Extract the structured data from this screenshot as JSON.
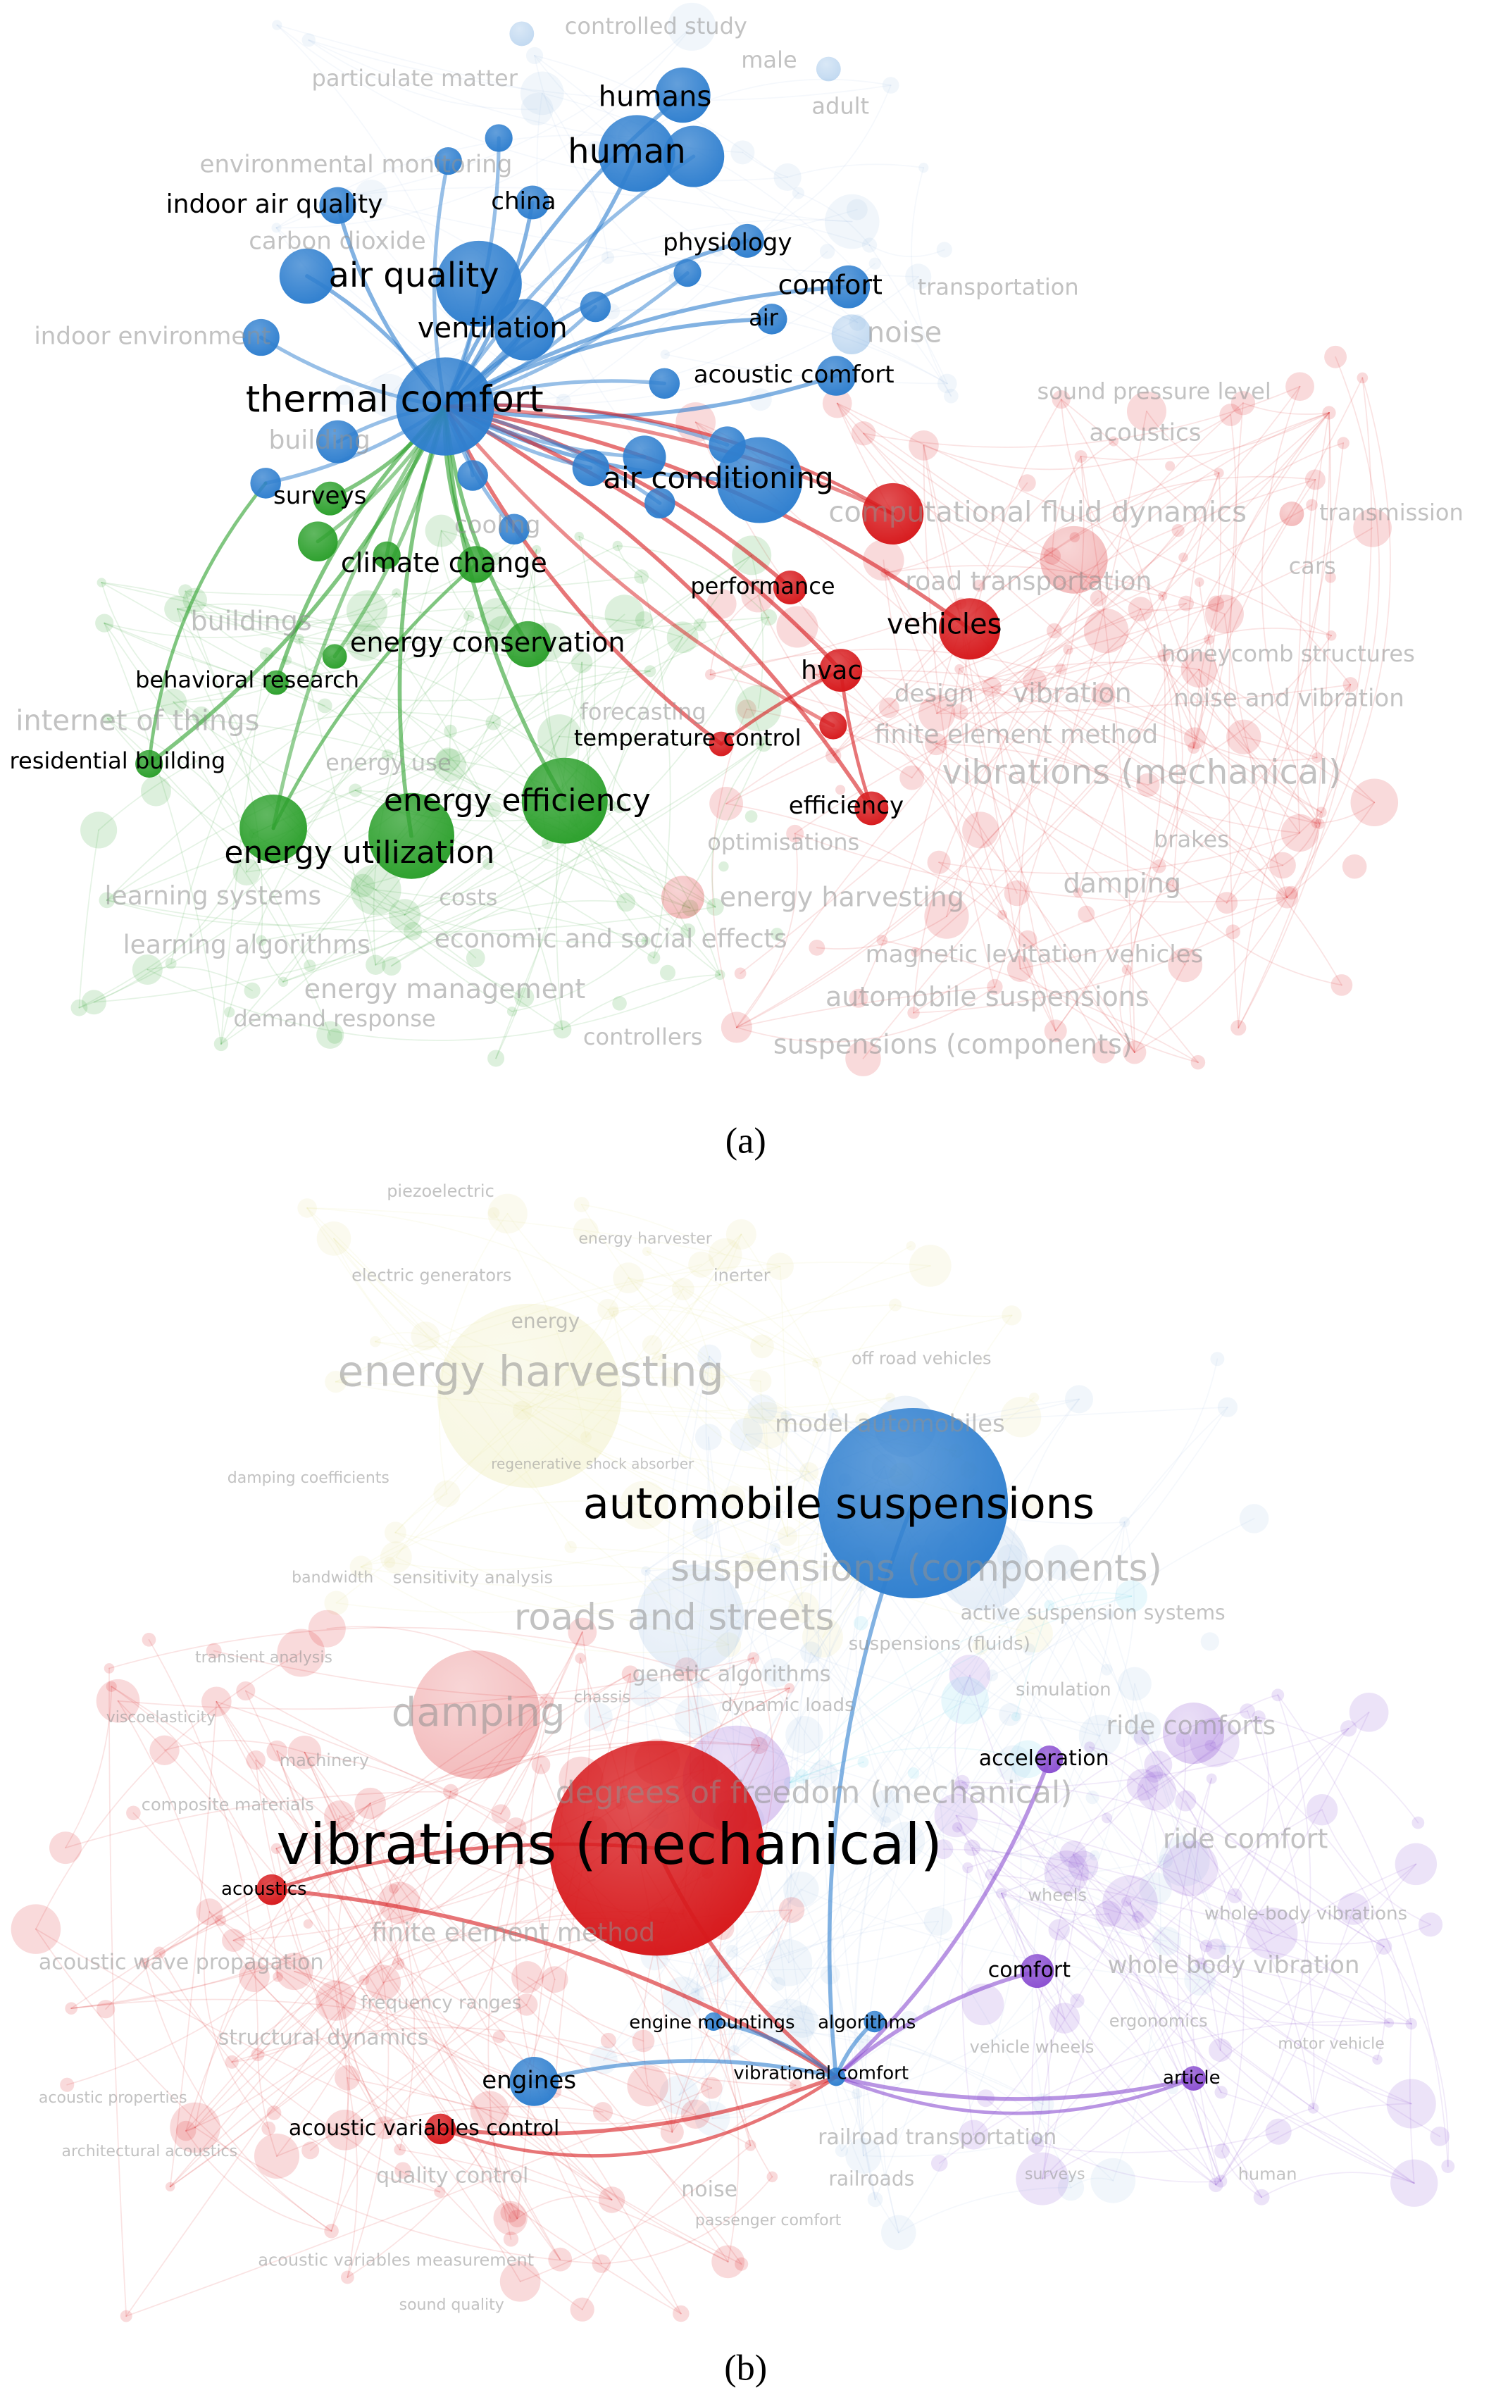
{
  "clusters": {
    "blue": "#2f7fcf",
    "green": "#2ca02c",
    "red": "#d7191c",
    "purple": "#8b4fd1",
    "yellow": "#e6e39a",
    "lightblue": "#a9c6e6",
    "cyan": "#6fd6ea"
  },
  "diagram_a": {
    "caption": "(a)",
    "hub": "thermal comfort",
    "nodes": [
      {
        "label": "humans",
        "cluster": "blue",
        "highlighted": true
      },
      {
        "label": "human",
        "cluster": "blue",
        "highlighted": true
      },
      {
        "label": "indoor air quality",
        "cluster": "blue",
        "highlighted": true
      },
      {
        "label": "china",
        "cluster": "blue",
        "highlighted": true
      },
      {
        "label": "physiology",
        "cluster": "blue",
        "highlighted": true
      },
      {
        "label": "air quality",
        "cluster": "blue",
        "highlighted": true
      },
      {
        "label": "comfort",
        "cluster": "blue",
        "highlighted": true
      },
      {
        "label": "ventilation",
        "cluster": "blue",
        "highlighted": true
      },
      {
        "label": "air",
        "cluster": "blue",
        "highlighted": true
      },
      {
        "label": "acoustic comfort",
        "cluster": "blue",
        "highlighted": true
      },
      {
        "label": "thermal comfort",
        "cluster": "blue",
        "highlighted": true
      },
      {
        "label": "air conditioning",
        "cluster": "blue",
        "highlighted": true
      },
      {
        "label": "surveys",
        "cluster": "green",
        "highlighted": true
      },
      {
        "label": "climate change",
        "cluster": "green",
        "highlighted": true
      },
      {
        "label": "performance",
        "cluster": "red",
        "highlighted": true
      },
      {
        "label": "energy conservation",
        "cluster": "green",
        "highlighted": true
      },
      {
        "label": "vehicles",
        "cluster": "red",
        "highlighted": true
      },
      {
        "label": "behavioral research",
        "cluster": "green",
        "highlighted": true
      },
      {
        "label": "hvac",
        "cluster": "red",
        "highlighted": true
      },
      {
        "label": "temperature control",
        "cluster": "red",
        "highlighted": true
      },
      {
        "label": "residential building",
        "cluster": "green",
        "highlighted": true
      },
      {
        "label": "energy efficiency",
        "cluster": "green",
        "highlighted": true
      },
      {
        "label": "efficiency",
        "cluster": "red",
        "highlighted": true
      },
      {
        "label": "energy utilization",
        "cluster": "green",
        "highlighted": true
      },
      {
        "label": "controlled study",
        "cluster": "blue",
        "highlighted": false
      },
      {
        "label": "male",
        "cluster": "blue",
        "highlighted": false
      },
      {
        "label": "particulate matter",
        "cluster": "blue",
        "highlighted": false
      },
      {
        "label": "adult",
        "cluster": "blue",
        "highlighted": false
      },
      {
        "label": "environmental monitoring",
        "cluster": "blue",
        "highlighted": false
      },
      {
        "label": "carbon dioxide",
        "cluster": "blue",
        "highlighted": false
      },
      {
        "label": "transportation",
        "cluster": "blue",
        "highlighted": false
      },
      {
        "label": "noise",
        "cluster": "blue",
        "highlighted": false
      },
      {
        "label": "indoor environment",
        "cluster": "blue",
        "highlighted": false
      },
      {
        "label": "sound pressure level",
        "cluster": "red",
        "highlighted": false
      },
      {
        "label": "building",
        "cluster": "blue",
        "highlighted": false
      },
      {
        "label": "acoustics",
        "cluster": "red",
        "highlighted": false
      },
      {
        "label": "computational fluid dynamics",
        "cluster": "red",
        "highlighted": false
      },
      {
        "label": "transmission",
        "cluster": "red",
        "highlighted": false
      },
      {
        "label": "cooling",
        "cluster": "blue",
        "highlighted": false
      },
      {
        "label": "road transportation",
        "cluster": "red",
        "highlighted": false
      },
      {
        "label": "cars",
        "cluster": "red",
        "highlighted": false
      },
      {
        "label": "buildings",
        "cluster": "green",
        "highlighted": false
      },
      {
        "label": "honeycomb structures",
        "cluster": "red",
        "highlighted": false
      },
      {
        "label": "design",
        "cluster": "red",
        "highlighted": false
      },
      {
        "label": "vibration",
        "cluster": "red",
        "highlighted": false
      },
      {
        "label": "noise and vibration",
        "cluster": "red",
        "highlighted": false
      },
      {
        "label": "internet of things",
        "cluster": "green",
        "highlighted": false
      },
      {
        "label": "forecasting",
        "cluster": "green",
        "highlighted": false
      },
      {
        "label": "finite element method",
        "cluster": "red",
        "highlighted": false
      },
      {
        "label": "energy use",
        "cluster": "green",
        "highlighted": false
      },
      {
        "label": "vibrations (mechanical)",
        "cluster": "red",
        "highlighted": false
      },
      {
        "label": "optimisations",
        "cluster": "green",
        "highlighted": false
      },
      {
        "label": "brakes",
        "cluster": "red",
        "highlighted": false
      },
      {
        "label": "damping",
        "cluster": "red",
        "highlighted": false
      },
      {
        "label": "learning systems",
        "cluster": "green",
        "highlighted": false
      },
      {
        "label": "costs",
        "cluster": "green",
        "highlighted": false
      },
      {
        "label": "energy harvesting",
        "cluster": "red",
        "highlighted": false
      },
      {
        "label": "learning algorithms",
        "cluster": "green",
        "highlighted": false
      },
      {
        "label": "economic and social effects",
        "cluster": "green",
        "highlighted": false
      },
      {
        "label": "magnetic levitation vehicles",
        "cluster": "red",
        "highlighted": false
      },
      {
        "label": "energy management",
        "cluster": "green",
        "highlighted": false
      },
      {
        "label": "automobile suspensions",
        "cluster": "red",
        "highlighted": false
      },
      {
        "label": "demand response",
        "cluster": "green",
        "highlighted": false
      },
      {
        "label": "controllers",
        "cluster": "green",
        "highlighted": false
      },
      {
        "label": "suspensions (components)",
        "cluster": "red",
        "highlighted": false
      }
    ]
  },
  "diagram_b": {
    "caption": "(b)",
    "hub": "vibrational comfort",
    "nodes": [
      {
        "label": "automobile suspensions",
        "cluster": "blue",
        "highlighted": true
      },
      {
        "label": "acceleration",
        "cluster": "purple",
        "highlighted": true
      },
      {
        "label": "vibrations (mechanical)",
        "cluster": "red",
        "highlighted": true
      },
      {
        "label": "acoustics",
        "cluster": "red",
        "highlighted": true
      },
      {
        "label": "comfort",
        "cluster": "purple",
        "highlighted": true
      },
      {
        "label": "engine mountings",
        "cluster": "blue",
        "highlighted": true
      },
      {
        "label": "algorithms",
        "cluster": "blue",
        "highlighted": true
      },
      {
        "label": "engines",
        "cluster": "blue",
        "highlighted": true
      },
      {
        "label": "vibrational comfort",
        "cluster": "blue",
        "highlighted": true
      },
      {
        "label": "article",
        "cluster": "purple",
        "highlighted": true
      },
      {
        "label": "acoustic variables control",
        "cluster": "red",
        "highlighted": true
      },
      {
        "label": "piezoelectric",
        "cluster": "yellow",
        "highlighted": false
      },
      {
        "label": "energy harvester",
        "cluster": "yellow",
        "highlighted": false
      },
      {
        "label": "electric generators",
        "cluster": "yellow",
        "highlighted": false
      },
      {
        "label": "inerter",
        "cluster": "yellow",
        "highlighted": false
      },
      {
        "label": "energy",
        "cluster": "yellow",
        "highlighted": false
      },
      {
        "label": "energy harvesting",
        "cluster": "yellow",
        "highlighted": false
      },
      {
        "label": "off road vehicles",
        "cluster": "lightblue",
        "highlighted": false
      },
      {
        "label": "model automobiles",
        "cluster": "lightblue",
        "highlighted": false
      },
      {
        "label": "damping coefficients",
        "cluster": "lightblue",
        "highlighted": false
      },
      {
        "label": "regenerative shock absorber",
        "cluster": "yellow",
        "highlighted": false
      },
      {
        "label": "suspensions (components)",
        "cluster": "lightblue",
        "highlighted": false
      },
      {
        "label": "bandwidth",
        "cluster": "yellow",
        "highlighted": false
      },
      {
        "label": "sensitivity analysis",
        "cluster": "yellow",
        "highlighted": false
      },
      {
        "label": "roads and streets",
        "cluster": "lightblue",
        "highlighted": false
      },
      {
        "label": "active suspension systems",
        "cluster": "lightblue",
        "highlighted": false
      },
      {
        "label": "suspensions (fluids)",
        "cluster": "lightblue",
        "highlighted": false
      },
      {
        "label": "transient analysis",
        "cluster": "red",
        "highlighted": false
      },
      {
        "label": "genetic algorithms",
        "cluster": "cyan",
        "highlighted": false
      },
      {
        "label": "simulation",
        "cluster": "purple",
        "highlighted": false
      },
      {
        "label": "chassis",
        "cluster": "lightblue",
        "highlighted": false
      },
      {
        "label": "dynamic loads",
        "cluster": "lightblue",
        "highlighted": false
      },
      {
        "label": "viscoelasticity",
        "cluster": "red",
        "highlighted": false
      },
      {
        "label": "damping",
        "cluster": "red",
        "highlighted": false
      },
      {
        "label": "ride comforts",
        "cluster": "purple",
        "highlighted": false
      },
      {
        "label": "machinery",
        "cluster": "red",
        "highlighted": false
      },
      {
        "label": "degrees of freedom (mechanical)",
        "cluster": "purple",
        "highlighted": false
      },
      {
        "label": "composite materials",
        "cluster": "red",
        "highlighted": false
      },
      {
        "label": "ride comfort",
        "cluster": "purple",
        "highlighted": false
      },
      {
        "label": "wheels",
        "cluster": "purple",
        "highlighted": false
      },
      {
        "label": "whole-body vibrations",
        "cluster": "purple",
        "highlighted": false
      },
      {
        "label": "finite element method",
        "cluster": "red",
        "highlighted": false
      },
      {
        "label": "acoustic wave propagation",
        "cluster": "red",
        "highlighted": false
      },
      {
        "label": "whole body vibration",
        "cluster": "purple",
        "highlighted": false
      },
      {
        "label": "frequency ranges",
        "cluster": "red",
        "highlighted": false
      },
      {
        "label": "ergonomics",
        "cluster": "purple",
        "highlighted": false
      },
      {
        "label": "structural dynamics",
        "cluster": "red",
        "highlighted": false
      },
      {
        "label": "vehicle wheels",
        "cluster": "purple",
        "highlighted": false
      },
      {
        "label": "motor vehicle",
        "cluster": "purple",
        "highlighted": false
      },
      {
        "label": "acoustic properties",
        "cluster": "red",
        "highlighted": false
      },
      {
        "label": "railroad transportation",
        "cluster": "lightblue",
        "highlighted": false
      },
      {
        "label": "architectural acoustics",
        "cluster": "red",
        "highlighted": false
      },
      {
        "label": "quality control",
        "cluster": "red",
        "highlighted": false
      },
      {
        "label": "railroads",
        "cluster": "lightblue",
        "highlighted": false
      },
      {
        "label": "surveys",
        "cluster": "purple",
        "highlighted": false
      },
      {
        "label": "human",
        "cluster": "purple",
        "highlighted": false
      },
      {
        "label": "noise",
        "cluster": "red",
        "highlighted": false
      },
      {
        "label": "passenger comfort",
        "cluster": "lightblue",
        "highlighted": false
      },
      {
        "label": "acoustic variables measurement",
        "cluster": "red",
        "highlighted": false
      },
      {
        "label": "sound quality",
        "cluster": "red",
        "highlighted": false
      }
    ]
  }
}
